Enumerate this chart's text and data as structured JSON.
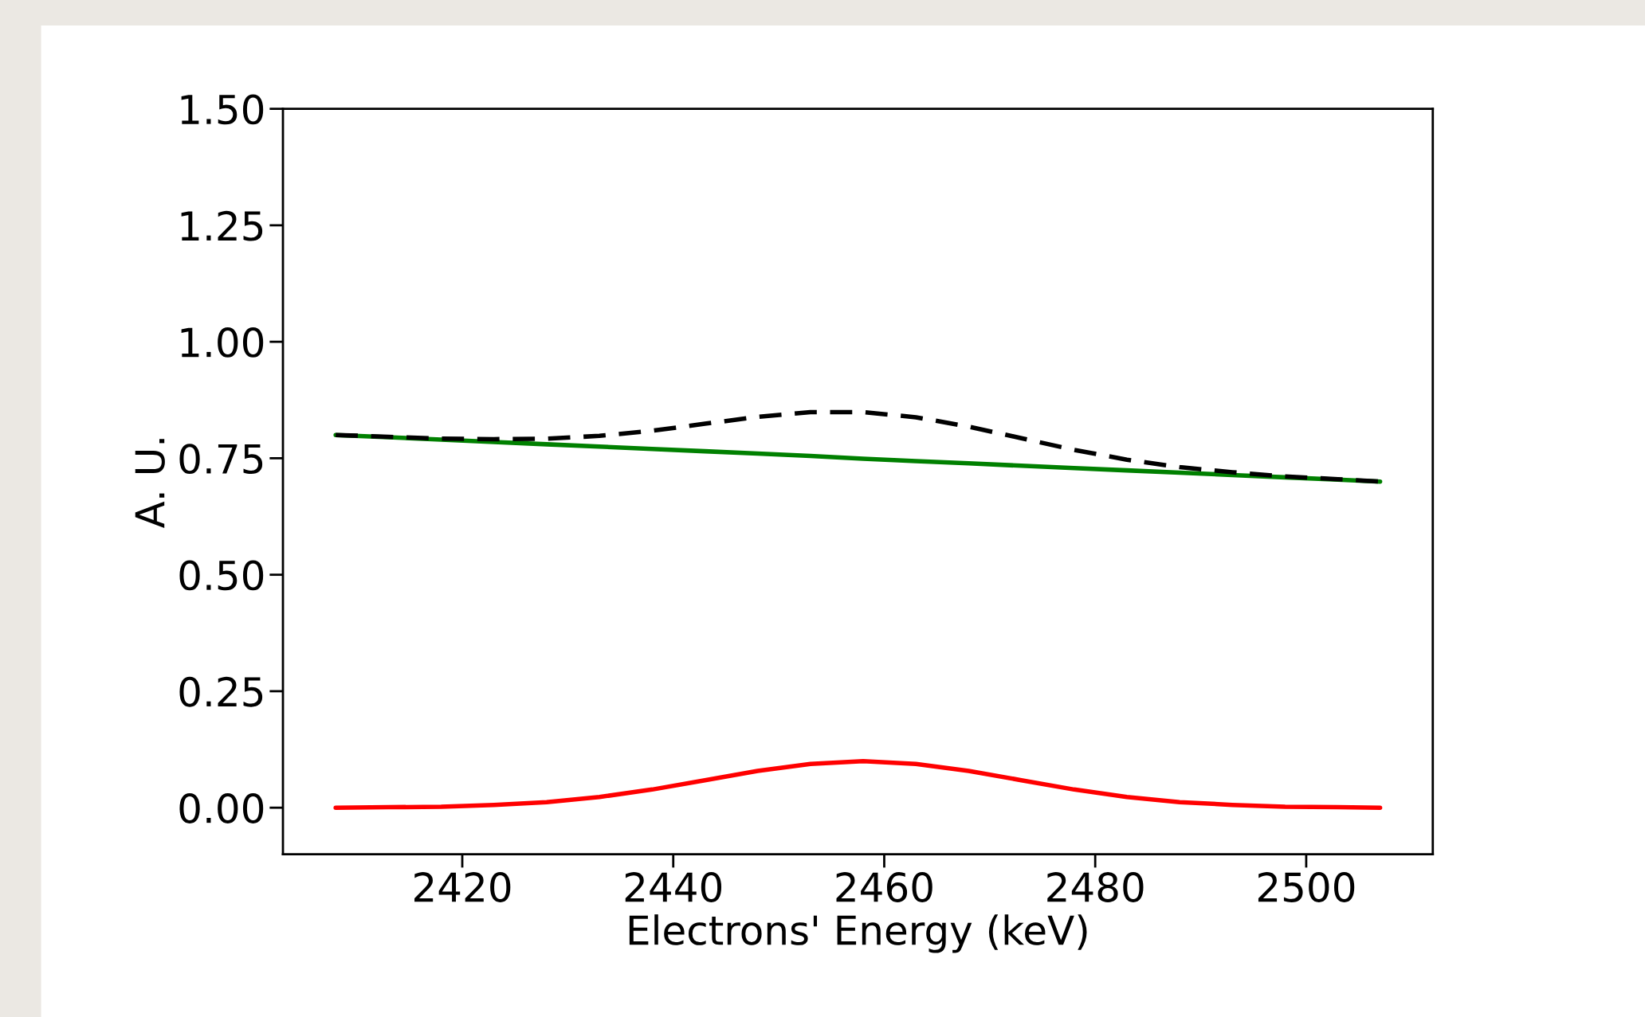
{
  "chart_data": {
    "type": "line",
    "xlabel": "Electrons' Energy (keV)",
    "ylabel": "A. U.",
    "x": [
      2408,
      2413,
      2418,
      2423,
      2428,
      2433,
      2438,
      2443,
      2448,
      2453,
      2458,
      2463,
      2468,
      2473,
      2478,
      2483,
      2488,
      2493,
      2498,
      2503,
      2507
    ],
    "series": [
      {
        "color": "#008000",
        "line_style": "solid",
        "values": [
          0.8,
          0.795,
          0.79,
          0.785,
          0.78,
          0.775,
          0.77,
          0.765,
          0.76,
          0.755,
          0.749,
          0.744,
          0.739,
          0.734,
          0.729,
          0.724,
          0.719,
          0.714,
          0.709,
          0.704,
          0.7
        ]
      },
      {
        "color": "#ff0000",
        "line_style": "solid",
        "values": [
          0.0,
          0.001,
          0.002,
          0.006,
          0.012,
          0.023,
          0.039,
          0.059,
          0.079,
          0.094,
          0.1,
          0.094,
          0.079,
          0.059,
          0.039,
          0.023,
          0.012,
          0.006,
          0.002,
          0.001,
          0.0
        ]
      },
      {
        "color": "#000000",
        "line_style": "dashed",
        "values": [
          0.8,
          0.796,
          0.792,
          0.791,
          0.792,
          0.798,
          0.809,
          0.824,
          0.839,
          0.849,
          0.849,
          0.838,
          0.818,
          0.793,
          0.768,
          0.747,
          0.731,
          0.72,
          0.711,
          0.705,
          0.7
        ]
      }
    ],
    "xlim": [
      2403,
      2512
    ],
    "xticks": [
      2420,
      2440,
      2460,
      2480,
      2500
    ],
    "ylim": [
      -0.1,
      1.5
    ],
    "yticks": [
      {
        "value": 0,
        "label": "0.00"
      },
      {
        "value": 0.25,
        "label": "0.25"
      },
      {
        "value": 0.5,
        "label": "0.50"
      },
      {
        "value": 0.75,
        "label": "0.75"
      },
      {
        "value": 1,
        "label": "1.00"
      },
      {
        "value": 1.25,
        "label": "1.25"
      },
      {
        "value": 1.5,
        "label": "1.50"
      }
    ],
    "grid": false,
    "marker": "none"
  }
}
